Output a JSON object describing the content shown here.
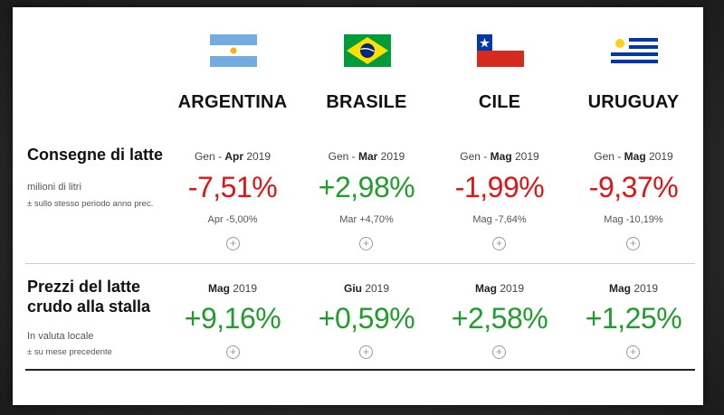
{
  "countries": [
    {
      "name": "ARGENTINA",
      "flag": "argentina-flag"
    },
    {
      "name": "BRASILE",
      "flag": "brazil-flag"
    },
    {
      "name": "CILE",
      "flag": "chile-flag"
    },
    {
      "name": "URUGUAY",
      "flag": "uruguay-flag"
    }
  ],
  "deliveries": {
    "title": "Consegne di latte",
    "unit": "milioni di litri",
    "note": "± sullo stesso periodo anno prec.",
    "cells": [
      {
        "period_prefix": "Gen - ",
        "period_month": "Apr",
        "period_year": " 2019",
        "value": "-7,51%",
        "sub": "Apr -5,00%",
        "trend": "negative"
      },
      {
        "period_prefix": "Gen - ",
        "period_month": "Mar",
        "period_year": " 2019",
        "value": "+2,98%",
        "sub": "Mar +4,70%",
        "trend": "positive"
      },
      {
        "period_prefix": "Gen - ",
        "period_month": "Mag",
        "period_year": " 2019",
        "value": "-1,99%",
        "sub": "Mag -7,64%",
        "trend": "negative"
      },
      {
        "period_prefix": "Gen - ",
        "period_month": "Mag",
        "period_year": " 2019",
        "value": "-9,37%",
        "sub": "Mag -10,19%",
        "trend": "negative"
      }
    ]
  },
  "prices": {
    "title_line1": "Prezzi del latte",
    "title_line2": "crudo alla stalla",
    "unit": "In valuta locale",
    "note": "± su mese precedente",
    "cells": [
      {
        "period_month": "Mag",
        "period_year": " 2019",
        "value": "+9,16%",
        "trend": "positive"
      },
      {
        "period_month": "Giu",
        "period_year": " 2019",
        "value": "+0,59%",
        "trend": "positive"
      },
      {
        "period_month": "Mag",
        "period_year": " 2019",
        "value": "+2,58%",
        "trend": "positive"
      },
      {
        "period_month": "Mag",
        "period_year": " 2019",
        "value": "+1,25%",
        "trend": "positive"
      }
    ]
  },
  "expand_symbol": "+",
  "colors": {
    "negative": "#e01414",
    "positive": "#1f9e2c"
  }
}
